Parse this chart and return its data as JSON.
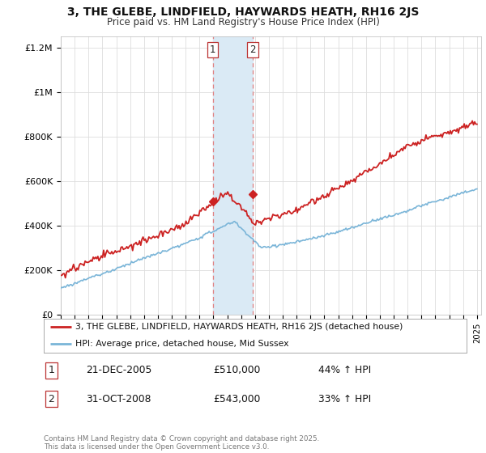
{
  "title": "3, THE GLEBE, LINDFIELD, HAYWARDS HEATH, RH16 2JS",
  "subtitle": "Price paid vs. HM Land Registry's House Price Index (HPI)",
  "legend_line1": "3, THE GLEBE, LINDFIELD, HAYWARDS HEATH, RH16 2JS (detached house)",
  "legend_line2": "HPI: Average price, detached house, Mid Sussex",
  "footer": "Contains HM Land Registry data © Crown copyright and database right 2025.\nThis data is licensed under the Open Government Licence v3.0.",
  "sale1_date": "21-DEC-2005",
  "sale1_price": 510000,
  "sale1_label": "44% ↑ HPI",
  "sale2_date": "31-OCT-2008",
  "sale2_price": 543000,
  "sale2_label": "33% ↑ HPI",
  "sale1_year": 2005.96,
  "sale2_year": 2008.83,
  "hpi_color": "#7ab5d8",
  "price_color": "#cc2222",
  "highlight_color": "#daeaf5",
  "dashed_color": "#e08080",
  "ylim": [
    0,
    1250000
  ],
  "yticks": [
    0,
    200000,
    400000,
    600000,
    800000,
    1000000,
    1200000
  ],
  "ytick_labels": [
    "£0",
    "£200K",
    "£400K",
    "£600K",
    "£800K",
    "£1M",
    "£1.2M"
  ],
  "x_start_year": 1995,
  "x_end_year": 2025,
  "background_color": "#ffffff",
  "grid_color": "#dddddd"
}
